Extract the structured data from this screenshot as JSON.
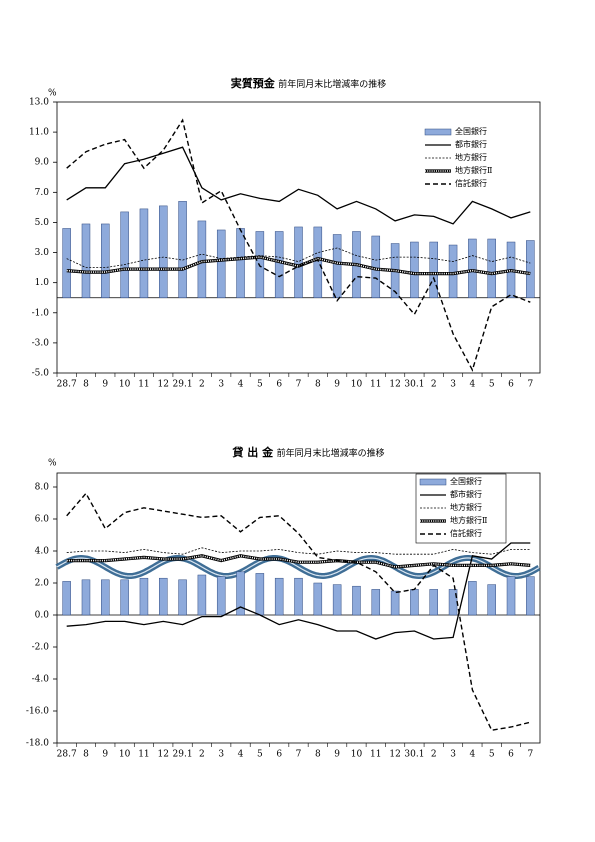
{
  "chart_data": [
    {
      "type": "combo",
      "title": "実質預金",
      "subtitle": "前年同月末比増減率の推移",
      "y_unit": "%",
      "categories": [
        "28.7",
        "8",
        "9",
        "10",
        "11",
        "12",
        "29.1",
        "2",
        "3",
        "4",
        "5",
        "6",
        "7",
        "8",
        "9",
        "10",
        "11",
        "12",
        "30.1",
        "2",
        "3",
        "4",
        "5",
        "6",
        "7"
      ],
      "ylim": [
        -5,
        13
      ],
      "yticks": [
        {
          "value": -5,
          "label": "-5.0"
        },
        {
          "value": -3,
          "label": "-3.0"
        },
        {
          "value": -1,
          "label": "-1.0"
        },
        {
          "value": 1,
          "label": "1.0"
        },
        {
          "value": 3,
          "label": "3.0"
        },
        {
          "value": 5,
          "label": "5.0"
        },
        {
          "value": 7,
          "label": "7.0"
        },
        {
          "value": 9,
          "label": "9.0"
        },
        {
          "value": 11,
          "label": "11.0"
        },
        {
          "value": 13,
          "label": "13.0"
        }
      ],
      "broken_axis": false,
      "legend": "top-right",
      "series": [
        {
          "name": "全国銀行",
          "kind": "bar",
          "color": "#8eaadb",
          "values": [
            4.6,
            4.9,
            4.9,
            5.7,
            5.9,
            6.1,
            6.4,
            5.1,
            4.5,
            4.6,
            4.4,
            4.4,
            4.7,
            4.7,
            4.2,
            4.4,
            4.1,
            3.6,
            3.7,
            3.7,
            3.5,
            3.9,
            3.9,
            3.7,
            3.8
          ]
        },
        {
          "name": "都市銀行",
          "kind": "line",
          "line_style": "solid",
          "color": "#000000",
          "values": [
            6.5,
            7.3,
            7.3,
            8.9,
            9.2,
            9.6,
            10.0,
            7.3,
            6.5,
            6.9,
            6.6,
            6.4,
            7.2,
            6.8,
            5.9,
            6.4,
            5.9,
            5.1,
            5.5,
            5.4,
            4.9,
            6.4,
            5.9,
            5.3,
            5.7
          ]
        },
        {
          "name": "地方銀行",
          "kind": "line",
          "line_style": "dotted",
          "color": "#000000",
          "values": [
            2.6,
            2.0,
            2.0,
            2.2,
            2.5,
            2.7,
            2.5,
            2.9,
            2.6,
            2.7,
            2.8,
            2.7,
            2.4,
            3.0,
            3.3,
            2.8,
            2.5,
            2.7,
            2.7,
            2.6,
            2.4,
            2.8,
            2.4,
            2.7,
            2.3
          ]
        },
        {
          "name": "地方銀行Ⅱ",
          "kind": "line",
          "line_style": "hatched",
          "color": "#000000",
          "values": [
            1.8,
            1.7,
            1.7,
            1.9,
            1.9,
            1.9,
            1.9,
            2.4,
            2.5,
            2.6,
            2.7,
            2.4,
            2.1,
            2.6,
            2.3,
            2.2,
            1.9,
            1.8,
            1.6,
            1.6,
            1.6,
            1.8,
            1.6,
            1.8,
            1.6
          ]
        },
        {
          "name": "信託銀行",
          "kind": "line",
          "line_style": "dashed",
          "color": "#000000",
          "values": [
            8.6,
            9.7,
            10.2,
            10.5,
            8.6,
            9.8,
            11.8,
            6.3,
            7.1,
            4.5,
            2.1,
            1.4,
            2.1,
            2.5,
            -0.2,
            1.4,
            1.3,
            0.4,
            -1.1,
            1.3,
            -2.4,
            -4.8,
            -0.6,
            0.2,
            -0.3
          ]
        }
      ]
    },
    {
      "type": "combo",
      "title": "貸 出 金",
      "subtitle": "前年同月末比増減率の推移",
      "y_unit": "%",
      "categories": [
        "28.7",
        "8",
        "9",
        "10",
        "11",
        "12",
        "29.1",
        "2",
        "3",
        "4",
        "5",
        "6",
        "7",
        "8",
        "9",
        "10",
        "11",
        "12",
        "30.1",
        "2",
        "3",
        "4",
        "5",
        "6",
        "7"
      ],
      "ylim": [
        -18,
        8
      ],
      "yticks": [
        {
          "value": -18,
          "label": "-18.0"
        },
        {
          "value": -16,
          "label": "-16.0"
        },
        {
          "value": -4,
          "label": "-4.0"
        },
        {
          "value": -2,
          "label": "-2.0"
        },
        {
          "value": 0,
          "label": "0.0"
        },
        {
          "value": 2,
          "label": "2.0"
        },
        {
          "value": 4,
          "label": "4.0"
        },
        {
          "value": 6,
          "label": "6.0"
        },
        {
          "value": 8,
          "label": "8.0"
        }
      ],
      "broken_axis": true,
      "legend": "top-right",
      "series": [
        {
          "name": "全国銀行",
          "kind": "bar",
          "color": "#8eaadb",
          "values": [
            2.1,
            2.2,
            2.2,
            2.2,
            2.3,
            2.3,
            2.2,
            2.5,
            2.4,
            2.7,
            2.6,
            2.3,
            2.3,
            2.0,
            1.9,
            1.8,
            1.6,
            1.5,
            1.6,
            1.6,
            1.6,
            2.1,
            1.9,
            2.4,
            2.4
          ]
        },
        {
          "name": "都市銀行",
          "kind": "line",
          "line_style": "solid",
          "color": "#000000",
          "values": [
            -0.7,
            -0.6,
            -0.4,
            -0.4,
            -0.6,
            -0.4,
            -0.6,
            -0.1,
            -0.1,
            0.5,
            0.0,
            -0.6,
            -0.3,
            -0.6,
            -1.0,
            -1.0,
            -1.5,
            -1.1,
            -1.0,
            -1.5,
            -1.4,
            3.7,
            3.5,
            4.5,
            4.5
          ]
        },
        {
          "name": "地方銀行",
          "kind": "line",
          "line_style": "dotted",
          "color": "#000000",
          "values": [
            3.9,
            4.0,
            4.0,
            3.9,
            4.1,
            3.9,
            3.8,
            4.2,
            3.9,
            4.0,
            4.0,
            4.1,
            3.9,
            3.8,
            4.0,
            3.9,
            3.9,
            3.8,
            3.8,
            3.8,
            4.1,
            3.9,
            3.8,
            4.1,
            4.1
          ]
        },
        {
          "name": "地方銀行Ⅱ",
          "kind": "line",
          "line_style": "hatched",
          "color": "#000000",
          "values": [
            3.4,
            3.4,
            3.4,
            3.5,
            3.6,
            3.5,
            3.5,
            3.7,
            3.4,
            3.7,
            3.5,
            3.5,
            3.3,
            3.3,
            3.4,
            3.3,
            3.3,
            3.0,
            3.1,
            3.2,
            3.1,
            3.1,
            3.1,
            3.2,
            3.1
          ]
        },
        {
          "name": "信託銀行",
          "kind": "line",
          "line_style": "dashed",
          "color": "#000000",
          "values": [
            6.2,
            7.6,
            5.4,
            6.4,
            6.7,
            6.5,
            6.3,
            6.1,
            6.2,
            5.2,
            6.1,
            6.2,
            5.1,
            3.6,
            3.4,
            3.3,
            2.7,
            1.4,
            1.6,
            3.1,
            2.3,
            -8.1,
            -17.2,
            -17.0,
            -16.7
          ]
        }
      ]
    }
  ]
}
